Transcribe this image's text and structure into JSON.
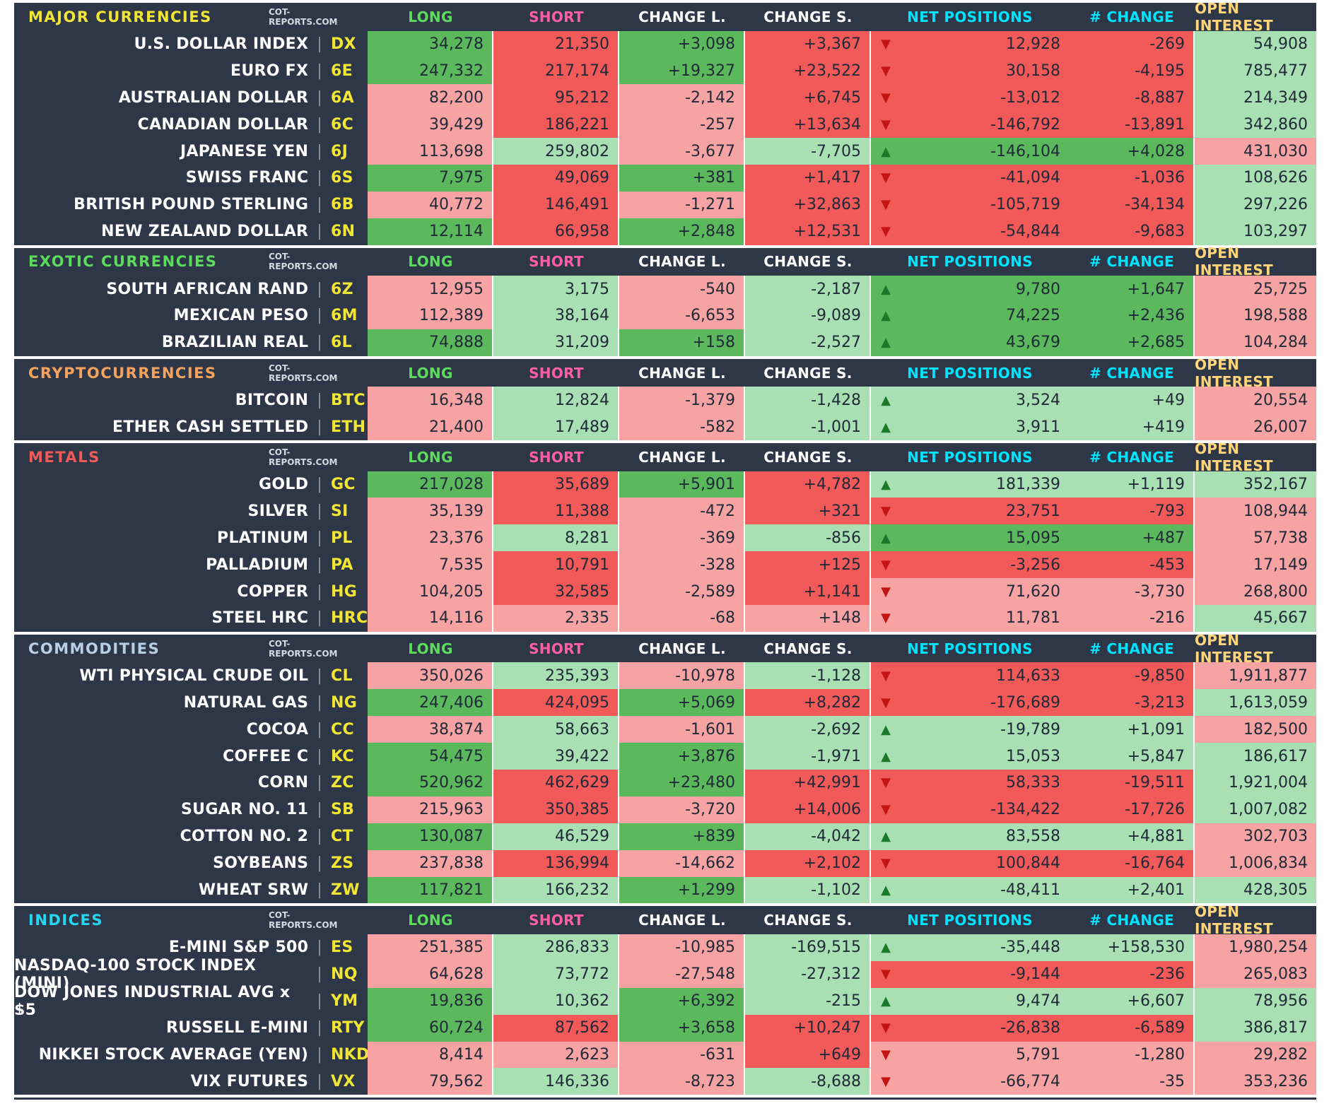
{
  "source": "COT-REPORTS.COM",
  "headers": {
    "long": "LONG",
    "short": "SHORT",
    "change_l": "CHANGE L.",
    "change_s": "CHANGE S.",
    "net_positions": "NET POSITIONS",
    "n_change": "# CHANGE",
    "open_interest": "OPEN INTEREST"
  },
  "header_colors": {
    "long": "#5cdb5c",
    "short": "#ff5fa2",
    "change": "#ffffff",
    "net": "#00e5ff",
    "open_interest": "#ffd47a"
  },
  "cell_colors": {
    "dark_green": "#5cb85c",
    "light_green": "#a8e0b3",
    "dark_red": "#f25a5a",
    "light_red": "#f7a3a3"
  },
  "icons": {
    "up": "triangle-up-icon",
    "down": "triangle-down-icon"
  },
  "sections": [
    {
      "title": "MAJOR CURRENCIES",
      "title_color": "#f2e635",
      "rows": [
        {
          "name": "U.S. DOLLAR INDEX",
          "code": "DX",
          "long": "34,278",
          "short": "21,350",
          "chl": "+3,098",
          "chs": "+3,367",
          "dir": "down",
          "net": "12,928",
          "nchg": "-269",
          "oi": "54,908",
          "c": [
            "dg",
            "dr",
            "dg",
            "dr",
            "dr",
            "dr",
            "lg"
          ]
        },
        {
          "name": "EURO FX",
          "code": "6E",
          "long": "247,332",
          "short": "217,174",
          "chl": "+19,327",
          "chs": "+23,522",
          "dir": "down",
          "net": "30,158",
          "nchg": "-4,195",
          "oi": "785,477",
          "c": [
            "dg",
            "dr",
            "dg",
            "dr",
            "dr",
            "dr",
            "lg"
          ]
        },
        {
          "name": "AUSTRALIAN DOLLAR",
          "code": "6A",
          "long": "82,200",
          "short": "95,212",
          "chl": "-2,142",
          "chs": "+6,745",
          "dir": "down",
          "net": "-13,012",
          "nchg": "-8,887",
          "oi": "214,349",
          "c": [
            "lr",
            "dr",
            "lr",
            "dr",
            "dr",
            "dr",
            "lg"
          ]
        },
        {
          "name": "CANADIAN DOLLAR",
          "code": "6C",
          "long": "39,429",
          "short": "186,221",
          "chl": "-257",
          "chs": "+13,634",
          "dir": "down",
          "net": "-146,792",
          "nchg": "-13,891",
          "oi": "342,860",
          "c": [
            "lr",
            "dr",
            "lr",
            "dr",
            "dr",
            "dr",
            "lg"
          ]
        },
        {
          "name": "JAPANESE YEN",
          "code": "6J",
          "long": "113,698",
          "short": "259,802",
          "chl": "-3,677",
          "chs": "-7,705",
          "dir": "up",
          "net": "-146,104",
          "nchg": "+4,028",
          "oi": "431,030",
          "c": [
            "lr",
            "lg",
            "lr",
            "lg",
            "dg",
            "dg",
            "lr"
          ]
        },
        {
          "name": "SWISS FRANC",
          "code": "6S",
          "long": "7,975",
          "short": "49,069",
          "chl": "+381",
          "chs": "+1,417",
          "dir": "down",
          "net": "-41,094",
          "nchg": "-1,036",
          "oi": "108,626",
          "c": [
            "dg",
            "dr",
            "dg",
            "dr",
            "dr",
            "dr",
            "lg"
          ]
        },
        {
          "name": "BRITISH POUND STERLING",
          "code": "6B",
          "long": "40,772",
          "short": "146,491",
          "chl": "-1,271",
          "chs": "+32,863",
          "dir": "down",
          "net": "-105,719",
          "nchg": "-34,134",
          "oi": "297,226",
          "c": [
            "lr",
            "dr",
            "lr",
            "dr",
            "dr",
            "dr",
            "lg"
          ]
        },
        {
          "name": "NEW ZEALAND DOLLAR",
          "code": "6N",
          "long": "12,114",
          "short": "66,958",
          "chl": "+2,848",
          "chs": "+12,531",
          "dir": "down",
          "net": "-54,844",
          "nchg": "-9,683",
          "oi": "103,297",
          "c": [
            "dg",
            "dr",
            "dg",
            "dr",
            "dr",
            "dr",
            "lg"
          ]
        }
      ]
    },
    {
      "title": "EXOTIC CURRENCIES",
      "title_color": "#5cdb5c",
      "rows": [
        {
          "name": "SOUTH AFRICAN RAND",
          "code": "6Z",
          "long": "12,955",
          "short": "3,175",
          "chl": "-540",
          "chs": "-2,187",
          "dir": "up",
          "net": "9,780",
          "nchg": "+1,647",
          "oi": "25,725",
          "c": [
            "lr",
            "lg",
            "lr",
            "lg",
            "dg",
            "dg",
            "lr"
          ]
        },
        {
          "name": "MEXICAN PESO",
          "code": "6M",
          "long": "112,389",
          "short": "38,164",
          "chl": "-6,653",
          "chs": "-9,089",
          "dir": "up",
          "net": "74,225",
          "nchg": "+2,436",
          "oi": "198,588",
          "c": [
            "lr",
            "lg",
            "lr",
            "lg",
            "dg",
            "dg",
            "lr"
          ]
        },
        {
          "name": "BRAZILIAN REAL",
          "code": "6L",
          "long": "74,888",
          "short": "31,209",
          "chl": "+158",
          "chs": "-2,527",
          "dir": "up",
          "net": "43,679",
          "nchg": "+2,685",
          "oi": "104,284",
          "c": [
            "dg",
            "lg",
            "dg",
            "lg",
            "dg",
            "dg",
            "lr"
          ]
        }
      ]
    },
    {
      "title": "CRYPTOCURRENCIES",
      "title_color": "#f5a25d",
      "rows": [
        {
          "name": "BITCOIN",
          "code": "BTC",
          "long": "16,348",
          "short": "12,824",
          "chl": "-1,379",
          "chs": "-1,428",
          "dir": "up",
          "net": "3,524",
          "nchg": "+49",
          "oi": "20,554",
          "c": [
            "lr",
            "lg",
            "lr",
            "lg",
            "lg",
            "lg",
            "lr"
          ]
        },
        {
          "name": "ETHER CASH SETTLED",
          "code": "ETH",
          "long": "21,400",
          "short": "17,489",
          "chl": "-582",
          "chs": "-1,001",
          "dir": "up",
          "net": "3,911",
          "nchg": "+419",
          "oi": "26,007",
          "c": [
            "lr",
            "lg",
            "lr",
            "lg",
            "lg",
            "lg",
            "lr"
          ]
        }
      ]
    },
    {
      "title": "METALS",
      "title_color": "#f25a5a",
      "rows": [
        {
          "name": "GOLD",
          "code": "GC",
          "long": "217,028",
          "short": "35,689",
          "chl": "+5,901",
          "chs": "+4,782",
          "dir": "up",
          "net": "181,339",
          "nchg": "+1,119",
          "oi": "352,167",
          "c": [
            "dg",
            "dr",
            "dg",
            "dr",
            "lg",
            "lg",
            "lg"
          ]
        },
        {
          "name": "SILVER",
          "code": "SI",
          "long": "35,139",
          "short": "11,388",
          "chl": "-472",
          "chs": "+321",
          "dir": "down",
          "net": "23,751",
          "nchg": "-793",
          "oi": "108,944",
          "c": [
            "lr",
            "dr",
            "lr",
            "dr",
            "dr",
            "dr",
            "lr"
          ]
        },
        {
          "name": "PLATINUM",
          "code": "PL",
          "long": "23,376",
          "short": "8,281",
          "chl": "-369",
          "chs": "-856",
          "dir": "up",
          "net": "15,095",
          "nchg": "+487",
          "oi": "57,738",
          "c": [
            "lr",
            "lg",
            "lr",
            "lg",
            "dg",
            "dg",
            "lr"
          ]
        },
        {
          "name": "PALLADIUM",
          "code": "PA",
          "long": "7,535",
          "short": "10,791",
          "chl": "-328",
          "chs": "+125",
          "dir": "down",
          "net": "-3,256",
          "nchg": "-453",
          "oi": "17,149",
          "c": [
            "lr",
            "dr",
            "lr",
            "dr",
            "dr",
            "dr",
            "lr"
          ]
        },
        {
          "name": "COPPER",
          "code": "HG",
          "long": "104,205",
          "short": "32,585",
          "chl": "-2,589",
          "chs": "+1,141",
          "dir": "down",
          "net": "71,620",
          "nchg": "-3,730",
          "oi": "268,800",
          "c": [
            "lr",
            "dr",
            "lr",
            "dr",
            "lr",
            "lr",
            "lr"
          ]
        },
        {
          "name": "STEEL HRC",
          "code": "HRC",
          "long": "14,116",
          "short": "2,335",
          "chl": "-68",
          "chs": "+148",
          "dir": "down",
          "net": "11,781",
          "nchg": "-216",
          "oi": "45,667",
          "c": [
            "lr",
            "lr",
            "lr",
            "lr",
            "lr",
            "lr",
            "lg"
          ]
        }
      ]
    },
    {
      "title": "COMMODITIES",
      "title_color": "#b8cfe6",
      "rows": [
        {
          "name": "WTI PHYSICAL CRUDE OIL",
          "code": "CL",
          "long": "350,026",
          "short": "235,393",
          "chl": "-10,978",
          "chs": "-1,128",
          "dir": "down",
          "net": "114,633",
          "nchg": "-9,850",
          "oi": "1,911,877",
          "c": [
            "lr",
            "lg",
            "lr",
            "lg",
            "dr",
            "dr",
            "lr"
          ]
        },
        {
          "name": "NATURAL GAS",
          "code": "NG",
          "long": "247,406",
          "short": "424,095",
          "chl": "+5,069",
          "chs": "+8,282",
          "dir": "down",
          "net": "-176,689",
          "nchg": "-3,213",
          "oi": "1,613,059",
          "c": [
            "dg",
            "dr",
            "dg",
            "dr",
            "dr",
            "dr",
            "lg"
          ]
        },
        {
          "name": "COCOA",
          "code": "CC",
          "long": "38,874",
          "short": "58,663",
          "chl": "-1,601",
          "chs": "-2,692",
          "dir": "up",
          "net": "-19,789",
          "nchg": "+1,091",
          "oi": "182,500",
          "c": [
            "lr",
            "lg",
            "lr",
            "lg",
            "lg",
            "lg",
            "lr"
          ]
        },
        {
          "name": "COFFEE C",
          "code": "KC",
          "long": "54,475",
          "short": "39,422",
          "chl": "+3,876",
          "chs": "-1,971",
          "dir": "up",
          "net": "15,053",
          "nchg": "+5,847",
          "oi": "186,617",
          "c": [
            "dg",
            "lg",
            "dg",
            "lg",
            "lg",
            "lg",
            "lg"
          ]
        },
        {
          "name": "CORN",
          "code": "ZC",
          "long": "520,962",
          "short": "462,629",
          "chl": "+23,480",
          "chs": "+42,991",
          "dir": "down",
          "net": "58,333",
          "nchg": "-19,511",
          "oi": "1,921,004",
          "c": [
            "dg",
            "dr",
            "dg",
            "dr",
            "dr",
            "dr",
            "lg"
          ]
        },
        {
          "name": "SUGAR NO. 11",
          "code": "SB",
          "long": "215,963",
          "short": "350,385",
          "chl": "-3,720",
          "chs": "+14,006",
          "dir": "down",
          "net": "-134,422",
          "nchg": "-17,726",
          "oi": "1,007,082",
          "c": [
            "lr",
            "dr",
            "lr",
            "dr",
            "dr",
            "dr",
            "lg"
          ]
        },
        {
          "name": "COTTON NO. 2",
          "code": "CT",
          "long": "130,087",
          "short": "46,529",
          "chl": "+839",
          "chs": "-4,042",
          "dir": "up",
          "net": "83,558",
          "nchg": "+4,881",
          "oi": "302,703",
          "c": [
            "dg",
            "lg",
            "dg",
            "lg",
            "lg",
            "lg",
            "lr"
          ]
        },
        {
          "name": "SOYBEANS",
          "code": "ZS",
          "long": "237,838",
          "short": "136,994",
          "chl": "-14,662",
          "chs": "+2,102",
          "dir": "down",
          "net": "100,844",
          "nchg": "-16,764",
          "oi": "1,006,834",
          "c": [
            "lr",
            "dr",
            "lr",
            "dr",
            "dr",
            "dr",
            "lr"
          ]
        },
        {
          "name": "WHEAT SRW",
          "code": "ZW",
          "long": "117,821",
          "short": "166,232",
          "chl": "+1,299",
          "chs": "-1,102",
          "dir": "up",
          "net": "-48,411",
          "nchg": "+2,401",
          "oi": "428,305",
          "c": [
            "dg",
            "lg",
            "dg",
            "lg",
            "lg",
            "lg",
            "lg"
          ]
        }
      ]
    },
    {
      "title": "INDICES",
      "title_color": "#25d7f0",
      "rows": [
        {
          "name": "E-MINI S&P 500",
          "code": "ES",
          "long": "251,385",
          "short": "286,833",
          "chl": "-10,985",
          "chs": "-169,515",
          "dir": "up",
          "net": "-35,448",
          "nchg": "+158,530",
          "oi": "1,980,254",
          "c": [
            "lr",
            "lg",
            "lr",
            "lg",
            "lg",
            "lg",
            "lr"
          ]
        },
        {
          "name": "NASDAQ-100 STOCK INDEX (MINI)",
          "code": "NQ",
          "long": "64,628",
          "short": "73,772",
          "chl": "-27,548",
          "chs": "-27,312",
          "dir": "down",
          "net": "-9,144",
          "nchg": "-236",
          "oi": "265,083",
          "c": [
            "lr",
            "lg",
            "lr",
            "lg",
            "dr",
            "dr",
            "lr"
          ]
        },
        {
          "name": "DOW JONES INDUSTRIAL AVG x $5",
          "code": "YM",
          "long": "19,836",
          "short": "10,362",
          "chl": "+6,392",
          "chs": "-215",
          "dir": "up",
          "net": "9,474",
          "nchg": "+6,607",
          "oi": "78,956",
          "c": [
            "dg",
            "lg",
            "dg",
            "lg",
            "lg",
            "lg",
            "lg"
          ]
        },
        {
          "name": "RUSSELL E-MINI",
          "code": "RTY",
          "long": "60,724",
          "short": "87,562",
          "chl": "+3,658",
          "chs": "+10,247",
          "dir": "down",
          "net": "-26,838",
          "nchg": "-6,589",
          "oi": "386,817",
          "c": [
            "dg",
            "dr",
            "dg",
            "dr",
            "dr",
            "dr",
            "lg"
          ]
        },
        {
          "name": "NIKKEI STOCK AVERAGE (YEN)",
          "code": "NKD",
          "long": "8,414",
          "short": "2,623",
          "chl": "-631",
          "chs": "+649",
          "dir": "down",
          "net": "5,791",
          "nchg": "-1,280",
          "oi": "29,282",
          "c": [
            "lr",
            "lr",
            "lr",
            "dr",
            "lr",
            "lr",
            "lr"
          ]
        },
        {
          "name": "VIX FUTURES",
          "code": "VX",
          "long": "79,562",
          "short": "146,336",
          "chl": "-8,723",
          "chs": "-8,688",
          "dir": "down",
          "net": "-66,774",
          "nchg": "-35",
          "oi": "353,236",
          "c": [
            "lr",
            "lg",
            "lr",
            "lg",
            "lr",
            "lr",
            "lr"
          ]
        }
      ]
    }
  ]
}
